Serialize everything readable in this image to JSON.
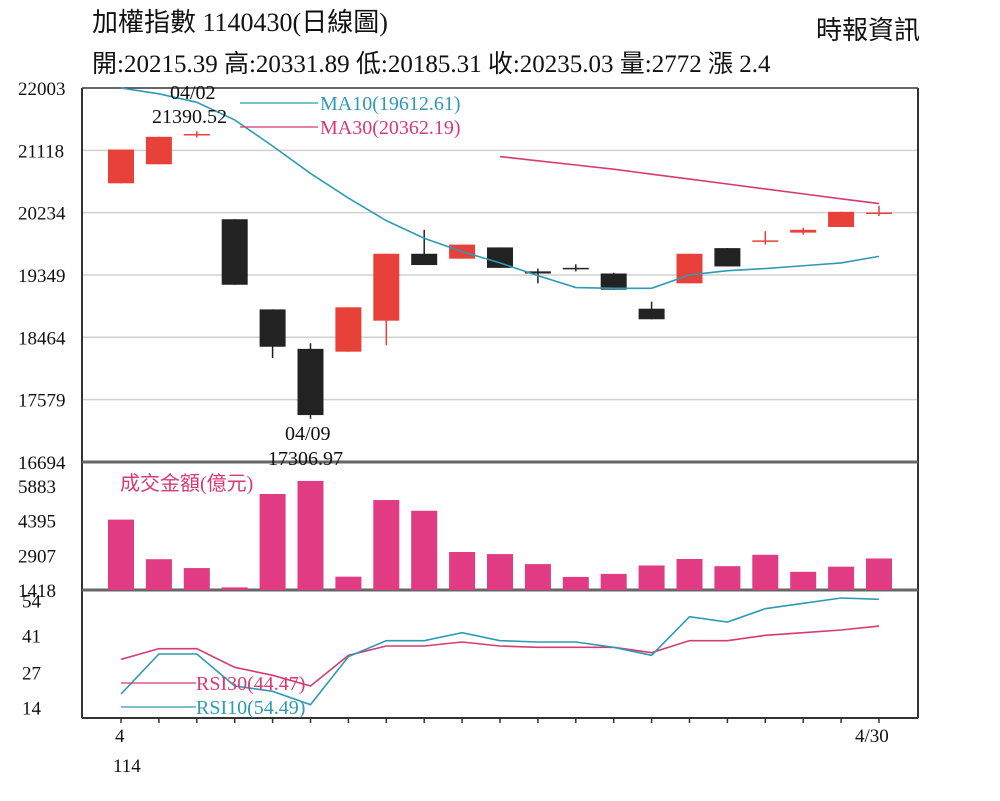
{
  "header": {
    "title": "加權指數 1140430(日線圖)",
    "stats": "開:20215.39 高:20331.89 低:20185.31 收:20235.03 量:2772 漲 2.4",
    "source": "時報資訊"
  },
  "colors": {
    "up": "#e8413a",
    "down": "#222222",
    "ma10": "#2e9ab5",
    "ma30": "#d63a72",
    "volume": "#e03b83",
    "grid": "#d0d0d0"
  },
  "chart_data": [
    {
      "type": "candlestick",
      "y_ticks": [
        "22003",
        "21118",
        "20234",
        "19349",
        "18464",
        "17579",
        "16694"
      ],
      "ylim": [
        16694,
        22003
      ],
      "x_start_label": "4",
      "x_start_sublabel": "114",
      "x_end_label": "4/30",
      "annotations": [
        {
          "date": "04/02",
          "value": "21390.52",
          "at": 2
        },
        {
          "date": "04/09",
          "value": "17306.97",
          "at": 5
        }
      ],
      "ohlc": [
        {
          "o": 20650,
          "h": 21130,
          "l": 20650,
          "c": 21130
        },
        {
          "o": 20920,
          "h": 21310,
          "l": 20920,
          "c": 21310
        },
        {
          "o": 21340,
          "h": 21390.52,
          "l": 21300,
          "c": 21350
        },
        {
          "o": 20140,
          "h": 20140,
          "l": 19210,
          "c": 19210
        },
        {
          "o": 18860,
          "h": 18860,
          "l": 18170,
          "c": 18330
        },
        {
          "o": 18300,
          "h": 18380,
          "l": 17306.97,
          "c": 17360
        },
        {
          "o": 18260,
          "h": 18890,
          "l": 18260,
          "c": 18890
        },
        {
          "o": 18700,
          "h": 19650,
          "l": 18350,
          "c": 19650
        },
        {
          "o": 19650,
          "h": 19990,
          "l": 19490,
          "c": 19490
        },
        {
          "o": 19580,
          "h": 19780,
          "l": 19580,
          "c": 19780
        },
        {
          "o": 19740,
          "h": 19740,
          "l": 19450,
          "c": 19450
        },
        {
          "o": 19400,
          "h": 19440,
          "l": 19230,
          "c": 19370
        },
        {
          "o": 19450,
          "h": 19500,
          "l": 19400,
          "c": 19430
        },
        {
          "o": 19370,
          "h": 19380,
          "l": 19140,
          "c": 19140
        },
        {
          "o": 18870,
          "h": 18970,
          "l": 18720,
          "c": 18720
        },
        {
          "o": 19230,
          "h": 19650,
          "l": 19230,
          "c": 19650
        },
        {
          "o": 19730,
          "h": 19730,
          "l": 19470,
          "c": 19470
        },
        {
          "o": 19830,
          "h": 19970,
          "l": 19780,
          "c": 19840
        },
        {
          "o": 19950,
          "h": 20020,
          "l": 19920,
          "c": 19990
        },
        {
          "o": 20030,
          "h": 20245,
          "l": 20030,
          "c": 20245
        },
        {
          "o": 20215.39,
          "h": 20331.89,
          "l": 20185.31,
          "c": 20235.03
        }
      ],
      "series": [
        {
          "name": "MA10(19612.61)",
          "values": [
            22003,
            21920,
            21800,
            21550,
            21180,
            20790,
            20440,
            20120,
            19870,
            19680,
            19520,
            19340,
            19170,
            19160,
            19160,
            19350,
            19410,
            19440,
            19480,
            19520,
            19612.61
          ]
        },
        {
          "name": "MA30(20362.19)",
          "values": [
            null,
            null,
            null,
            null,
            null,
            null,
            null,
            null,
            null,
            null,
            21030,
            20970,
            20910,
            20850,
            20780,
            20710,
            20640,
            20570,
            20500,
            20430,
            20362.19
          ]
        }
      ]
    },
    {
      "type": "bar",
      "title": "成交金額(億元)",
      "y_ticks": [
        "5883",
        "4395",
        "2907",
        "1418"
      ],
      "ylim": [
        1418,
        5883
      ],
      "values": [
        4440,
        2740,
        2360,
        1530,
        5540,
        6100,
        1990,
        5280,
        4820,
        3050,
        2960,
        2530,
        1980,
        2110,
        2470,
        2750,
        2440,
        2930,
        2200,
        2420,
        2772
      ]
    },
    {
      "type": "line",
      "y_ticks": [
        "54",
        "41",
        "27",
        "14"
      ],
      "ylim": [
        10,
        58
      ],
      "series": [
        {
          "name": "RSI30(44.47)",
          "values": [
            32,
            36,
            36,
            29,
            26,
            22,
            33.5,
            37,
            37,
            38.5,
            37,
            36.5,
            36.5,
            36.5,
            34.5,
            39,
            39,
            41,
            42,
            43,
            44.47
          ]
        },
        {
          "name": "RSI10(54.49)",
          "values": [
            19,
            34,
            34,
            22,
            20,
            15,
            33,
            39,
            39,
            42,
            39,
            38.5,
            38.5,
            36.5,
            33.5,
            48,
            46,
            51,
            53,
            55,
            54.49
          ]
        }
      ]
    }
  ]
}
